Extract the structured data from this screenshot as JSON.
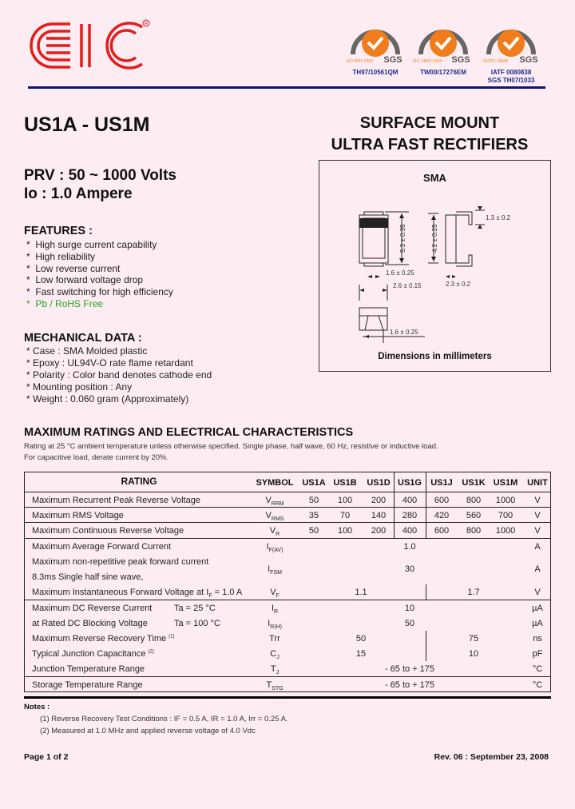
{
  "header": {
    "logo_text": "EIC",
    "logo_color": "#e31b1b",
    "certificates": [
      {
        "badge": "SGS",
        "standard": "ISO 9001:2000",
        "caption": [
          "TH97/10561QM"
        ]
      },
      {
        "badge": "SGS",
        "standard": "ISO 14001:2004",
        "caption": [
          "TW00/17276EM"
        ]
      },
      {
        "badge": "SGS",
        "standard": "ISO/TS 16949",
        "caption": [
          "IATF 0080838",
          "SGS TH07/1033"
        ]
      }
    ],
    "rule_color": "#141470"
  },
  "title": "US1A - US1M",
  "subtitle": [
    "SURFACE MOUNT",
    "ULTRA FAST RECTIFIERS"
  ],
  "prv": "PRV : 50 ~ 1000 Volts",
  "io": "Io : 1.0 Ampere",
  "features": {
    "heading": "FEATURES :",
    "items": [
      "High surge current capability",
      "High reliability",
      "Low reverse current",
      "Low forward voltage drop",
      "Fast switching for high efficiency",
      "Pb / RoHS Free"
    ],
    "highlight_color": "#23a623"
  },
  "mechanical": {
    "heading": "MECHANICAL  DATA :",
    "items": [
      "Case :  SMA Molded plastic",
      "Epoxy : UL94V-O rate flame retardant",
      "Polarity : Color band denotes cathode end",
      "Mounting  position : Any",
      "Weight : 0.060 gram (Approximately)"
    ]
  },
  "diagram": {
    "package": "SMA",
    "dims": [
      "5.3 ± 0.35",
      "4.2 ± 0.25",
      "1.3 ± 0.2",
      "1.6 ± 0.25",
      "2.6 ± 0.15",
      "2.3 ± 0.2",
      "1.6 ± 0.25"
    ],
    "caption": "Dimensions in millimeters"
  },
  "ratings": {
    "heading": "MAXIMUM RATINGS AND ELECTRICAL CHARACTERISTICS",
    "note1": "Rating at  25 °C ambient temperature unless otherwise specified. Single phase, half wave, 60 Hz, resistive or inductive load.",
    "note2": "For capacitive load, derate current by 20%."
  },
  "table": {
    "headers": [
      "RATING",
      "SYMBOL",
      "US1A",
      "US1B",
      "US1D",
      "US1G",
      "US1J",
      "US1K",
      "US1M",
      "UNIT"
    ],
    "rows": [
      {
        "rating": [
          "Maximum Recurrent Peak Reverse Voltage"
        ],
        "sym": "V",
        "sub": "RRM",
        "values": [
          "50",
          "100",
          "200",
          "400",
          "600",
          "800",
          "1000"
        ],
        "unit": "V"
      },
      {
        "rating": [
          "Maximum RMS Voltage"
        ],
        "sym": "V",
        "sub": "RMS",
        "values": [
          "35",
          "70",
          "140",
          "280",
          "420",
          "560",
          "700"
        ],
        "unit": "V"
      },
      {
        "rating": [
          "Maximum Continuous Reverse Voltage"
        ],
        "sym": "V",
        "sub": "R",
        "values": [
          "50",
          "100",
          "200",
          "400",
          "600",
          "800",
          "1000"
        ],
        "unit": "V"
      },
      {
        "rating": [
          "Maximum Average Forward Current"
        ],
        "sym": "I",
        "sub": "F(AV)",
        "all": "1.0",
        "unit": "A"
      },
      {
        "rating": [
          "Maximum non-repetitive peak forward current",
          "8.3ms Single half sine wave,"
        ],
        "sym": "I",
        "sub": "FSM",
        "all": "30",
        "unit": "A"
      },
      {
        "rating": [
          "Maximum Instantaneous Forward Voltage at I",
          "F",
          " = 1.0 A"
        ],
        "sym": "V",
        "sub": "F",
        "left": "1.1",
        "right": "1.7",
        "unit": "V"
      },
      {
        "rating": [
          "Maximum DC Reverse Current",
          "Ta = 25 °C"
        ],
        "sym": "I",
        "sub": "R",
        "all": "10",
        "unit": "µA"
      },
      {
        "rating": [
          "at Rated DC Blocking Voltage",
          "Ta = 100 °C"
        ],
        "sym": "I",
        "sub": "R(H)",
        "all": "50",
        "unit": "µA"
      },
      {
        "rating": [
          "Maximum Reverse Recovery Time",
          "(1)"
        ],
        "sym": "Trr",
        "sub": "",
        "left": "50",
        "right": "75",
        "unit": "ns"
      },
      {
        "rating": [
          "Typical Junction Capacitance",
          "(2)"
        ],
        "sym": "C",
        "sub": "J",
        "left": "15",
        "right": "10",
        "unit": "pF"
      },
      {
        "rating": [
          "Junction Temperature Range"
        ],
        "sym": "T",
        "sub": "J",
        "all": "- 65 to + 175",
        "unit": "°C"
      },
      {
        "rating": [
          "Storage Temperature Range"
        ],
        "sym": "T",
        "sub": "STG",
        "all": "- 65 to + 175",
        "unit": "°C"
      }
    ]
  },
  "notes": {
    "heading": "Notes :",
    "items": [
      "(1)  Reverse Recovery Test Conditions : IF = 0.5 A, IR = 1.0 A, Irr = 0.25 A.",
      "(2)  Measured at 1.0 MHz and applied reverse voltage of 4.0 Vdc"
    ]
  },
  "footer": {
    "page": "Page 1 of 2",
    "rev": "Rev. 06 : September 23, 2008"
  }
}
